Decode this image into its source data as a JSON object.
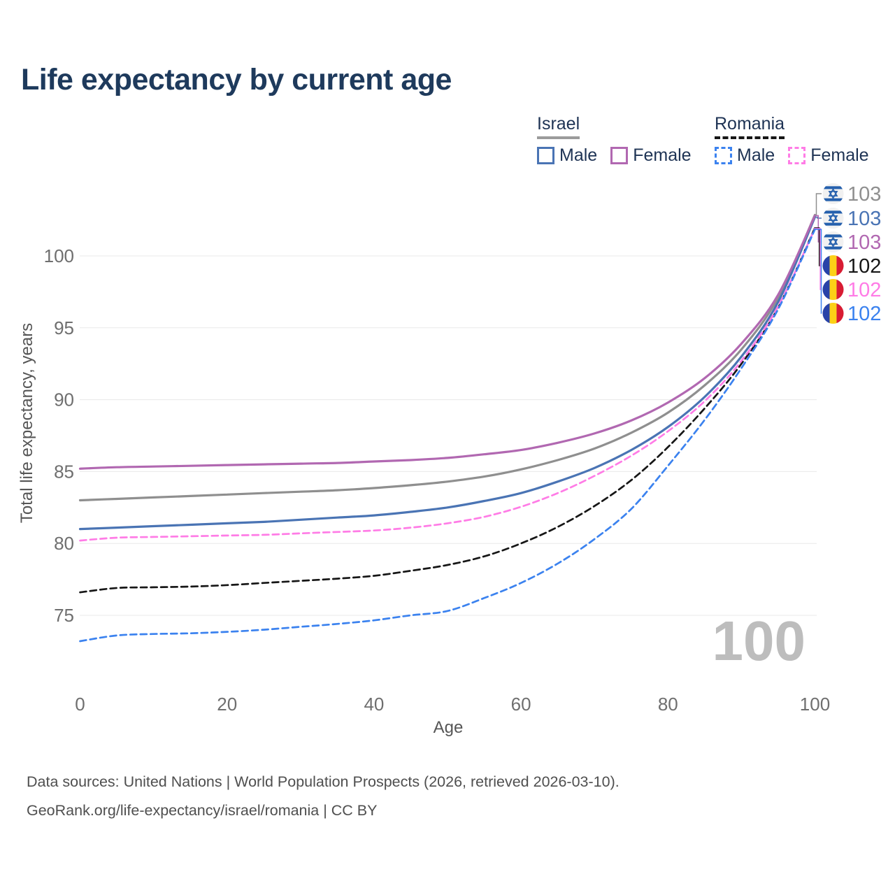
{
  "title": "Life expectancy by current age",
  "legend": {
    "groups": [
      {
        "country": "Israel",
        "underline_color": "#9b9b9b",
        "underline_dashed": false,
        "items": [
          {
            "label": "Male",
            "color": "#4a74b4",
            "dashed": false
          },
          {
            "label": "Female",
            "color": "#b168b1",
            "dashed": false
          }
        ]
      },
      {
        "country": "Romania",
        "underline_color": "#161616",
        "underline_dashed": true,
        "items": [
          {
            "label": "Male",
            "color": "#3b82ef",
            "dashed": true
          },
          {
            "label": "Female",
            "color": "#ff7ce6",
            "dashed": true
          }
        ]
      }
    ]
  },
  "chart_data": {
    "type": "line",
    "title": "Life expectancy by current age",
    "xlabel": "Age",
    "ylabel": "Total life expectancy, years",
    "xlim": [
      0,
      100
    ],
    "ylim": [
      71,
      104.5
    ],
    "xticks": [
      0,
      20,
      40,
      60,
      80,
      100
    ],
    "yticks": [
      75,
      80,
      85,
      90,
      95,
      100
    ],
    "grid": "horizontal",
    "legend_position": "top-right",
    "watermark": "100",
    "ages": [
      0,
      5,
      10,
      15,
      20,
      25,
      30,
      35,
      40,
      45,
      50,
      55,
      60,
      65,
      70,
      75,
      80,
      85,
      90,
      95,
      100
    ],
    "series": [
      {
        "name": "Israel",
        "country": "Israel",
        "flag": "israel",
        "color": "#8f8f8f",
        "dashed": false,
        "end_label": "103",
        "values": [
          83.0,
          83.1,
          83.2,
          83.3,
          83.4,
          83.5,
          83.6,
          83.7,
          83.85,
          84.05,
          84.3,
          84.65,
          85.15,
          85.8,
          86.6,
          87.7,
          89.1,
          91.0,
          93.5,
          97.1,
          102.85
        ]
      },
      {
        "name": "Israel Male",
        "country": "Israel",
        "flag": "israel",
        "color": "#4a74b4",
        "dashed": false,
        "end_label": "103",
        "values": [
          81.0,
          81.1,
          81.2,
          81.3,
          81.4,
          81.5,
          81.65,
          81.8,
          81.95,
          82.2,
          82.5,
          82.95,
          83.5,
          84.3,
          85.25,
          86.5,
          88.1,
          90.2,
          93.0,
          96.8,
          102.7
        ]
      },
      {
        "name": "Israel Female",
        "country": "Israel",
        "flag": "israel",
        "color": "#b168b1",
        "dashed": false,
        "end_label": "103",
        "values": [
          85.2,
          85.3,
          85.35,
          85.4,
          85.45,
          85.5,
          85.55,
          85.6,
          85.7,
          85.8,
          85.95,
          86.2,
          86.5,
          87.0,
          87.65,
          88.55,
          89.8,
          91.5,
          93.9,
          97.3,
          102.8
        ]
      },
      {
        "name": "Romania",
        "country": "Romania",
        "flag": "romania",
        "color": "#161616",
        "dashed": true,
        "end_label": "102",
        "values": [
          76.6,
          76.9,
          76.95,
          77.0,
          77.1,
          77.25,
          77.4,
          77.55,
          77.75,
          78.1,
          78.5,
          79.1,
          80.0,
          81.15,
          82.6,
          84.4,
          86.7,
          89.4,
          92.5,
          96.4,
          101.95
        ]
      },
      {
        "name": "Romania Female",
        "country": "Romania",
        "flag": "romania",
        "color": "#ff7ce6",
        "dashed": true,
        "end_label": "102",
        "values": [
          80.2,
          80.4,
          80.45,
          80.5,
          80.55,
          80.6,
          80.7,
          80.8,
          80.9,
          81.1,
          81.4,
          81.85,
          82.55,
          83.5,
          84.7,
          86.1,
          87.8,
          89.9,
          92.7,
          96.5,
          101.9
        ]
      },
      {
        "name": "Romania Male",
        "country": "Romania",
        "flag": "romania",
        "color": "#3b82ef",
        "dashed": true,
        "end_label": "102",
        "values": [
          73.2,
          73.6,
          73.7,
          73.75,
          73.85,
          74.0,
          74.2,
          74.4,
          74.65,
          75.0,
          75.3,
          76.2,
          77.25,
          78.6,
          80.3,
          82.4,
          85.4,
          88.6,
          92.2,
          96.3,
          101.85
        ]
      }
    ]
  },
  "footer": {
    "line1": "Data sources: United Nations | World Population Prospects (2026, retrieved 2026-03-10).",
    "line2": "GeoRank.org/life-expectancy/israel/romania | CC BY"
  }
}
